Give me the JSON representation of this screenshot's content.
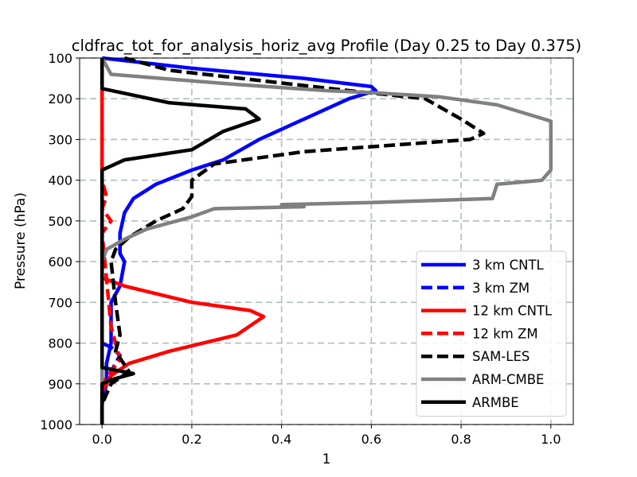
{
  "chart_data": {
    "type": "line",
    "title": "cldfrac_tot_for_analysis_horiz_avg Profile (Day 0.25 to Day 0.375)",
    "xlabel": "1",
    "ylabel": "Pressure (hPa)",
    "xlim": [
      -0.05,
      1.05
    ],
    "ylim": [
      1000,
      100
    ],
    "y_inverted": true,
    "xticks": [
      "0.0",
      "0.2",
      "0.4",
      "0.6",
      "0.8",
      "1.0"
    ],
    "yticks": [
      "100",
      "200",
      "300",
      "400",
      "500",
      "600",
      "700",
      "800",
      "900",
      "1000"
    ],
    "grid": true,
    "legend_position": "lower-right",
    "series": [
      {
        "name": "3 km CNTL",
        "color": "#0000ff",
        "style": "solid",
        "x": [
          0.0,
          0.2,
          0.45,
          0.6,
          0.61,
          0.55,
          0.45,
          0.35,
          0.27,
          0.2,
          0.12,
          0.07,
          0.05,
          0.04,
          0.04,
          0.05,
          0.04,
          0.02,
          0.02,
          0.02,
          0.01,
          0.01,
          0.0,
          0.0
        ],
        "y": [
          100,
          125,
          150,
          170,
          180,
          200,
          250,
          300,
          350,
          375,
          410,
          445,
          480,
          530,
          580,
          600,
          660,
          700,
          750,
          800,
          850,
          900,
          950,
          1000
        ]
      },
      {
        "name": "3 km ZM",
        "color": "#0000ff",
        "style": "dashed",
        "x": [
          0.0,
          0.0,
          0.0,
          0.0,
          0.0,
          0.0,
          0.0,
          0.0,
          0.02,
          0.04,
          0.02,
          0.0,
          0.0
        ],
        "y": [
          100,
          200,
          400,
          600,
          700,
          750,
          780,
          800,
          810,
          830,
          870,
          900,
          1000
        ]
      },
      {
        "name": "12 km CNTL",
        "color": "#ff0000",
        "style": "solid",
        "x": [
          0.0,
          0.0,
          0.0,
          0.0,
          0.0,
          0.0,
          0.05,
          0.2,
          0.33,
          0.36,
          0.3,
          0.15,
          0.06,
          0.02,
          0.0,
          0.0
        ],
        "y": [
          100,
          200,
          400,
          500,
          600,
          640,
          660,
          700,
          720,
          735,
          780,
          820,
          850,
          880,
          920,
          1000
        ]
      },
      {
        "name": "12 km ZM",
        "color": "#ff0000",
        "style": "dashed",
        "x": [
          0.0,
          0.0,
          0.01,
          0.0,
          0.02,
          0.0,
          0.02,
          0.04,
          0.02,
          0.0,
          0.0
        ],
        "y": [
          100,
          400,
          440,
          470,
          500,
          530,
          760,
          840,
          870,
          900,
          1000
        ]
      },
      {
        "name": "SAM-LES",
        "color": "#000000",
        "style": "dashed",
        "x": [
          0.05,
          0.15,
          0.35,
          0.55,
          0.72,
          0.8,
          0.85,
          0.82,
          0.45,
          0.25,
          0.2,
          0.2,
          0.18,
          0.12,
          0.06,
          0.03,
          0.02,
          0.03,
          0.04,
          0.03,
          0.06,
          0.02,
          0.0,
          0.0
        ],
        "y": [
          100,
          130,
          155,
          180,
          200,
          250,
          285,
          300,
          330,
          360,
          400,
          440,
          470,
          500,
          540,
          570,
          600,
          700,
          780,
          820,
          870,
          900,
          950,
          1000
        ]
      },
      {
        "name": "ARM-CMBE",
        "color": "#808080",
        "style": "solid",
        "x": [
          0.0,
          0.02,
          0.3,
          0.5,
          0.6,
          0.75,
          0.88,
          1.0,
          1.0,
          0.98,
          0.88,
          0.87,
          0.6,
          0.4,
          0.45,
          0.25,
          0.2,
          0.1,
          0.05,
          0.01,
          0.0,
          0.0
        ],
        "y": [
          100,
          140,
          165,
          180,
          185,
          195,
          215,
          255,
          375,
          400,
          410,
          445,
          455,
          460,
          465,
          470,
          490,
          520,
          545,
          570,
          600,
          1000
        ]
      },
      {
        "name": "ARMBE",
        "color": "#000000",
        "style": "solid",
        "x": [
          0.0,
          0.0,
          0.0,
          0.15,
          0.32,
          0.35,
          0.27,
          0.2,
          0.05,
          0.0,
          0.0,
          0.0,
          0.0,
          0.0,
          0.07,
          0.02,
          0.0,
          0.0
        ],
        "y": [
          100,
          160,
          175,
          210,
          225,
          250,
          280,
          325,
          350,
          375,
          600,
          800,
          820,
          860,
          875,
          890,
          900,
          1000
        ]
      }
    ]
  }
}
